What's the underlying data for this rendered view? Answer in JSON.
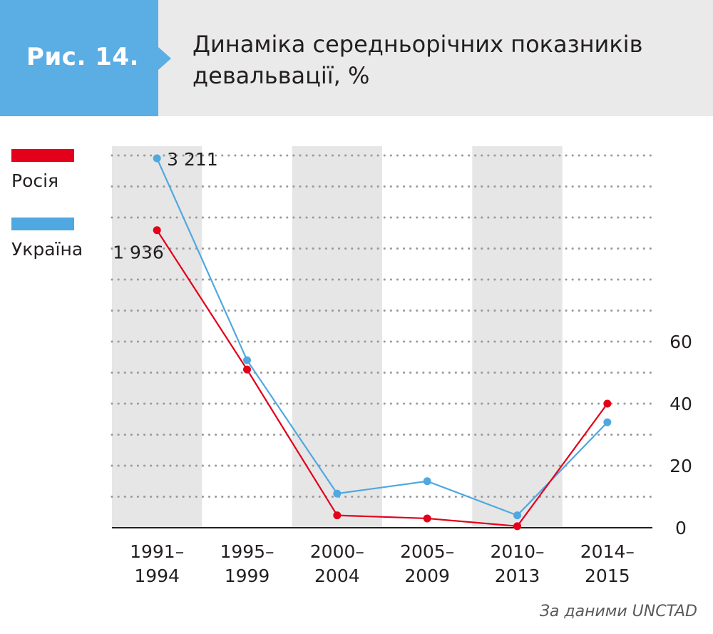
{
  "figure": {
    "label": "Рис. 14.",
    "title_line1": "Динаміка середньорічних показників",
    "title_line2": "девальвації, %"
  },
  "colors": {
    "badge": "#5aaee3",
    "header_bg": "#eaeaea",
    "band": "#e6e6e6",
    "grid": "#9a9a9a",
    "russia": "#e2001a",
    "ukraine": "#4fa8e0"
  },
  "legend": [
    {
      "label": "Росія",
      "color": "#e2001a"
    },
    {
      "label": "Україна",
      "color": "#4fa8e0"
    }
  ],
  "source": "За даними UNCTAD",
  "chart_data": {
    "type": "line",
    "title": "Динаміка середньорічних показників девальвації, %",
    "categories": [
      "1991–1994",
      "1995–1999",
      "2000–2004",
      "2005–2009",
      "2010–2013",
      "2014–2015"
    ],
    "category_lines": [
      [
        "1991–",
        "1994"
      ],
      [
        "1995–",
        "1999"
      ],
      [
        "2000–",
        "2004"
      ],
      [
        "2005–",
        "2009"
      ],
      [
        "2010–",
        "2013"
      ],
      [
        "2014–",
        "2015"
      ]
    ],
    "series": [
      {
        "name": "Росія",
        "color": "#e2001a",
        "values": [
          1936,
          51,
          4,
          3,
          0.5,
          40
        ]
      },
      {
        "name": "Україна",
        "color": "#4fa8e0",
        "values": [
          3211,
          54,
          11,
          15,
          4,
          34
        ]
      }
    ],
    "point_labels": [
      {
        "series": "Україна",
        "index": 0,
        "text": "3 211"
      },
      {
        "series": "Росія",
        "index": 0,
        "text": "1 936"
      }
    ],
    "yticks": [
      0,
      20,
      40,
      60
    ],
    "ylim": [
      0,
      60
    ],
    "axis_break": true,
    "y_axis_side": "right",
    "grid": true,
    "legend_position": "top-left"
  }
}
